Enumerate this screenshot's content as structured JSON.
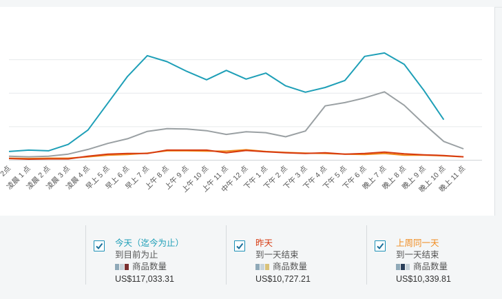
{
  "chart_data": {
    "type": "line",
    "categories": [
      "2点",
      "凌晨 1 点",
      "凌晨 2 点",
      "凌晨 3 点",
      "凌晨 4 点",
      "早上 5 点",
      "早上 6 点",
      "早上 7 点",
      "上午 8 点",
      "上午 9 点",
      "上午 10 点",
      "上午 11 点",
      "中午 12 点",
      "下午 1 点",
      "下午 2 点",
      "下午 3 点",
      "下午 4 点",
      "下午 5 点",
      "下午 6 点",
      "晚上 7 点",
      "晚上 8 点",
      "晚上 9 点",
      "晚上 10 点",
      "晚上 11 点"
    ],
    "ylim": [
      0,
      4
    ],
    "grid": true,
    "series": [
      {
        "name": "今天（迄今为止）",
        "color": "#1e9fb7",
        "values": [
          0.26,
          0.3,
          0.28,
          0.47,
          0.9,
          1.7,
          2.5,
          3.12,
          2.94,
          2.65,
          2.4,
          2.68,
          2.42,
          2.6,
          2.22,
          2.03,
          2.17,
          2.38,
          3.1,
          3.2,
          2.86,
          2.08,
          1.21,
          null
        ]
      },
      {
        "name": "昨天",
        "color": "#d63a10",
        "values": [
          0.05,
          0.03,
          0.04,
          0.04,
          0.12,
          0.18,
          0.2,
          0.2,
          0.3,
          0.3,
          0.3,
          0.22,
          0.29,
          0.25,
          0.22,
          0.2,
          0.22,
          0.18,
          0.2,
          0.24,
          0.19,
          0.16,
          0.14,
          0.1
        ]
      },
      {
        "name": "上周同一天",
        "color": "#f08a1c",
        "values": [
          0.06,
          0.05,
          0.06,
          0.06,
          0.1,
          0.15,
          0.17,
          0.21,
          0.28,
          0.28,
          0.27,
          0.27,
          0.31,
          0.26,
          0.23,
          0.21,
          0.2,
          0.18,
          0.17,
          0.2,
          0.15,
          0.15,
          0.13,
          0.1
        ]
      },
      {
        "name": "",
        "color": "#9aa0a3",
        "values": [
          0.12,
          0.1,
          0.12,
          0.18,
          0.32,
          0.5,
          0.64,
          0.86,
          0.94,
          0.93,
          0.88,
          0.77,
          0.85,
          0.82,
          0.7,
          0.87,
          1.62,
          1.72,
          1.86,
          2.04,
          1.64,
          1.08,
          0.56,
          0.34
        ]
      }
    ]
  },
  "legend": [
    {
      "name": "今天（迄今为止）",
      "sub": "到目前为止",
      "metric": "商品数量",
      "value": "US$117,033.31",
      "color": "#1e9fb7"
    },
    {
      "name": "昨天",
      "sub": "到一天结束",
      "metric": "商品数量",
      "value": "US$10,727.21",
      "color": "#d63a10"
    },
    {
      "name": "上周同一天",
      "sub": "到一天结束",
      "metric": "商品数量",
      "value": "US$10,339.81",
      "color": "#f08a1c"
    }
  ]
}
